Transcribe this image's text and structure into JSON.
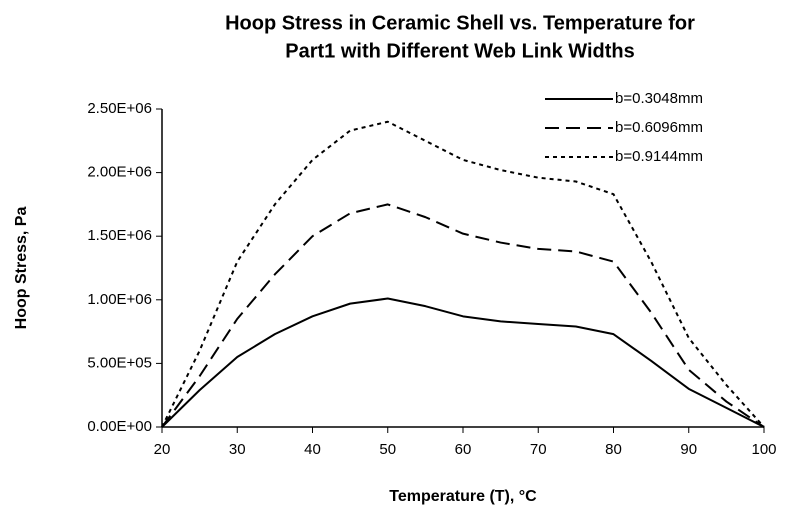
{
  "chart_data": {
    "type": "line",
    "title": [
      "Hoop Stress in Ceramic Shell vs. Temperature for",
      "Part1 with Different Web Link Widths"
    ],
    "x_label": "Temperature (T), °C",
    "y_label": "Hoop Stress, Pa",
    "x": [
      20,
      25,
      30,
      35,
      40,
      45,
      50,
      55,
      60,
      65,
      70,
      75,
      80,
      85,
      90,
      95,
      100
    ],
    "series": [
      {
        "name": "b=0.3048mm",
        "color": "#000000",
        "dash": "solid",
        "values": [
          0,
          290000,
          550000,
          730000,
          870000,
          970000,
          1010000,
          950000,
          870000,
          830000,
          810000,
          790000,
          730000,
          520000,
          300000,
          150000,
          0
        ]
      },
      {
        "name": "b=0.6096mm",
        "color": "#000000",
        "dash": "dashed",
        "values": [
          0,
          400000,
          850000,
          1200000,
          1500000,
          1680000,
          1750000,
          1650000,
          1520000,
          1450000,
          1400000,
          1380000,
          1300000,
          900000,
          450000,
          200000,
          0
        ]
      },
      {
        "name": "b=0.9144mm",
        "color": "#000000",
        "dash": "dotted",
        "values": [
          0,
          600000,
          1300000,
          1750000,
          2100000,
          2330000,
          2400000,
          2250000,
          2100000,
          2020000,
          1960000,
          1930000,
          1830000,
          1300000,
          700000,
          330000,
          0
        ]
      }
    ],
    "xlim": [
      20,
      100
    ],
    "xticks": [
      20,
      30,
      40,
      50,
      60,
      70,
      80,
      90,
      100
    ],
    "ylim": [
      0,
      2500000
    ],
    "yticks": [
      {
        "value": 0,
        "label": "0.00E+00"
      },
      {
        "value": 500000,
        "label": "5.00E+05"
      },
      {
        "value": 1000000,
        "label": "1.00E+06"
      },
      {
        "value": 1500000,
        "label": "1.50E+06"
      },
      {
        "value": 2000000,
        "label": "2.00E+06"
      },
      {
        "value": 2500000,
        "label": "2.50E+06"
      }
    ],
    "grid": false,
    "legend": "top-right"
  }
}
